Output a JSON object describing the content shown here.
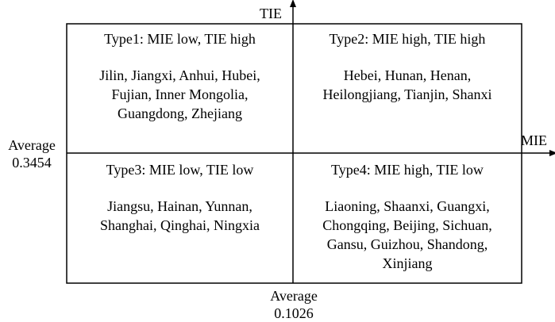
{
  "axes": {
    "y_label": "TIE",
    "x_label": "MIE",
    "y_average_label": "Average",
    "y_average_value": "0.3454",
    "x_average_label": "Average",
    "x_average_value": "0.1026"
  },
  "quadrants": [
    {
      "title": "Type1: MIE low, TIE high",
      "lines": [
        "Jilin, Jiangxi, Anhui, Hubei,",
        "Fujian, Inner Mongolia,",
        "Guangdong, Zhejiang"
      ]
    },
    {
      "title": "Type2: MIE high, TIE high",
      "lines": [
        "Hebei, Hunan, Henan,",
        "Heilongjiang, Tianjin, Shanxi"
      ]
    },
    {
      "title": "Type3: MIE low, TIE low",
      "lines": [
        "Jiangsu, Hainan, Yunnan,",
        "Shanghai, Qinghai, Ningxia"
      ]
    },
    {
      "title": "Type4: MIE high, TIE low",
      "lines": [
        "Liaoning, Shaanxi, Guangxi,",
        "Chongqing, Beijing, Sichuan,",
        "Gansu, Guizhou, Shandong,",
        "Xinjiang"
      ]
    }
  ]
}
